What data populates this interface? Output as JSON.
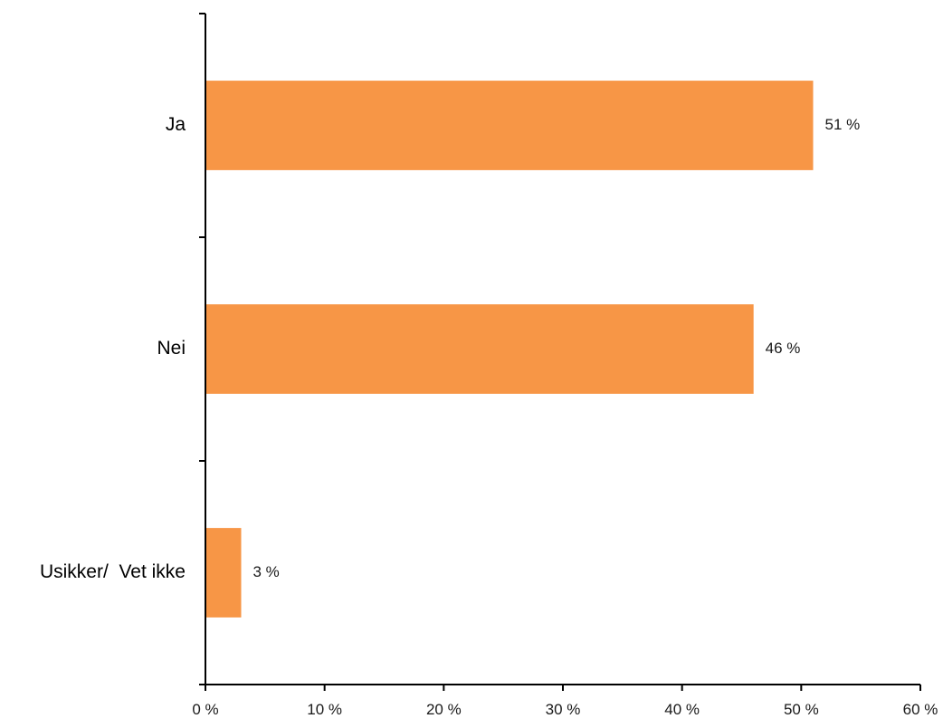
{
  "chart_data": {
    "type": "bar",
    "orientation": "horizontal",
    "categories": [
      "Ja",
      "Nei",
      "Usikker/  Vet ikke"
    ],
    "values": [
      51,
      46,
      3
    ],
    "value_labels": [
      "51 %",
      "46 %",
      "3 %"
    ],
    "xlim": [
      0,
      60
    ],
    "xticks": [
      0,
      10,
      20,
      30,
      40,
      50,
      60
    ],
    "xtick_labels": [
      "0 %",
      "10 %",
      "20 %",
      "30 %",
      "40 %",
      "50 %",
      "60 %"
    ],
    "title": "",
    "xlabel": "",
    "ylabel": "",
    "grid": false,
    "legend": "none",
    "colors": {
      "bar": "#F79646",
      "axis": "#000000"
    }
  }
}
